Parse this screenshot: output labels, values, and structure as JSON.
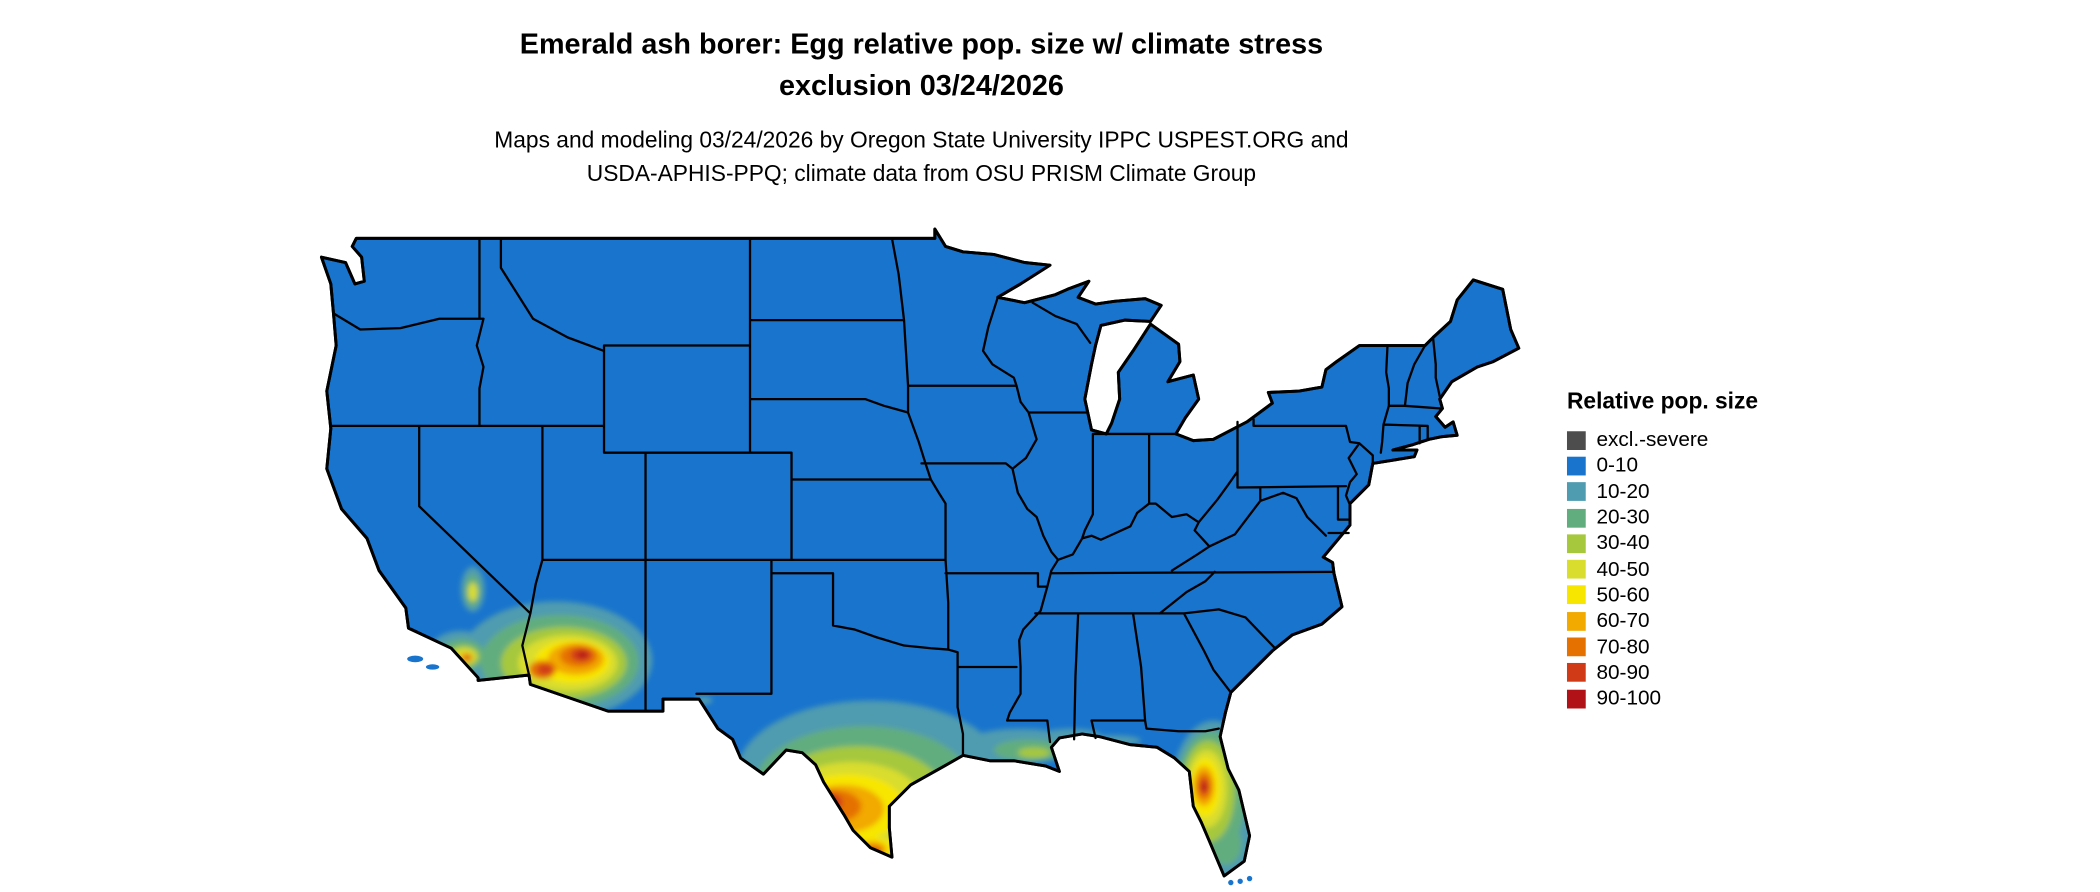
{
  "header": {
    "title_line1": "Emerald ash borer: Egg relative pop. size w/ climate stress",
    "title_line2": "exclusion 03/24/2026",
    "subtitle_line1": "Maps and modeling 03/24/2026 by Oregon State University IPPC USPEST.ORG and",
    "subtitle_line2": "USDA-APHIS-PPQ; climate data from OSU PRISM Climate Group"
  },
  "legend": {
    "title": "Relative pop. size",
    "items": [
      {
        "label": "excl.-severe",
        "color": "#4d4d4d"
      },
      {
        "label": "0-10",
        "color": "#1874cd"
      },
      {
        "label": "10-20",
        "color": "#4f9bb0"
      },
      {
        "label": "20-30",
        "color": "#62ad7e"
      },
      {
        "label": "30-40",
        "color": "#a6c83c"
      },
      {
        "label": "40-50",
        "color": "#d9dd2e"
      },
      {
        "label": "50-60",
        "color": "#f7e600"
      },
      {
        "label": "60-70",
        "color": "#f2a900"
      },
      {
        "label": "70-80",
        "color": "#e57200"
      },
      {
        "label": "80-90",
        "color": "#d13a16"
      },
      {
        "label": "90-100",
        "color": "#b11218"
      }
    ]
  },
  "map": {
    "base_fill": "#1874cd",
    "border_color": "#000000",
    "background": "#ffffff",
    "regions_with_elevated_population": [
      "Southern California coast",
      "Central Valley California",
      "Southern Arizona / Imperial Valley",
      "South Texas / Rio Grande Valley",
      "Louisiana Gulf Coast",
      "Florida peninsula"
    ]
  }
}
